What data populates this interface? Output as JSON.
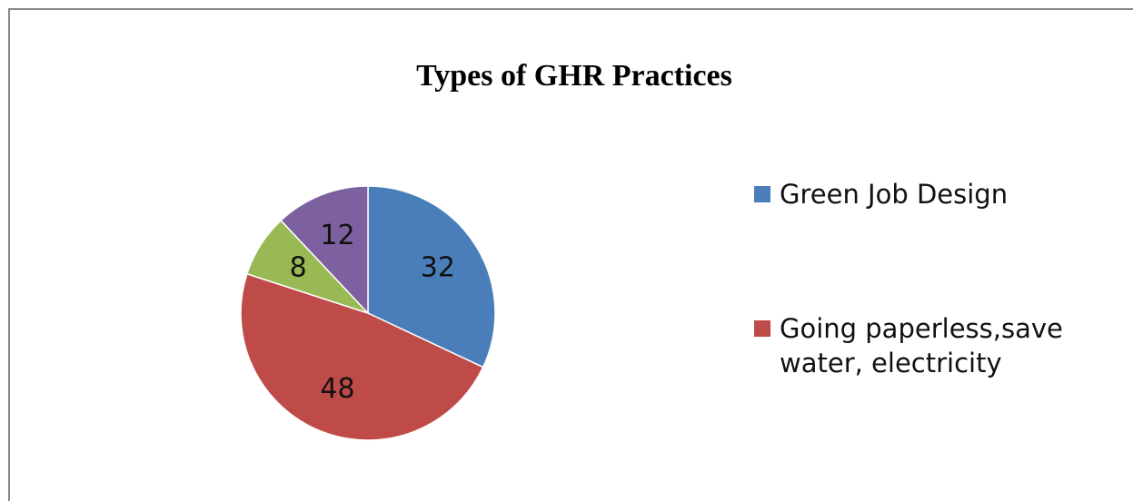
{
  "chart_data": {
    "type": "pie",
    "title": "Types of GHR Practices",
    "categories": [
      "Green Job Design",
      "Going paperless,save water, electricity",
      null,
      null
    ],
    "values": [
      32,
      48,
      8,
      12
    ],
    "colors": [
      "#4a7ebb",
      "#be4b48",
      "#98b954",
      "#7d60a0"
    ]
  }
}
